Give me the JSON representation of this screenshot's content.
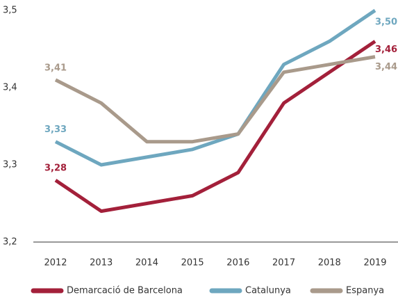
{
  "chart_data": {
    "type": "line",
    "x": [
      2012,
      2013,
      2014,
      2015,
      2016,
      2017,
      2018,
      2019
    ],
    "series": [
      {
        "name": "Demarcació de Barcelona",
        "color": "#a3203a",
        "values": [
          3.28,
          3.24,
          3.25,
          3.26,
          3.29,
          3.38,
          3.42,
          3.46
        ],
        "value_labels": [
          "3,28",
          null,
          null,
          null,
          null,
          null,
          null,
          "3,46"
        ]
      },
      {
        "name": "Catalunya",
        "color": "#6ea7bf",
        "values": [
          3.33,
          3.3,
          3.31,
          3.32,
          3.34,
          3.43,
          3.46,
          3.5
        ],
        "value_labels": [
          "3,33",
          null,
          null,
          null,
          null,
          null,
          null,
          "3,50"
        ]
      },
      {
        "name": "Espanya",
        "color": "#a99a8b",
        "values": [
          3.41,
          3.38,
          3.33,
          3.33,
          3.34,
          3.42,
          3.43,
          3.44
        ],
        "value_labels": [
          "3,41",
          null,
          null,
          null,
          null,
          null,
          null,
          "3,44"
        ]
      }
    ],
    "xlim": [
      2012,
      2019
    ],
    "ylim": [
      3.2,
      3.5
    ],
    "yticks": [
      {
        "value": 3.2,
        "label": "3,2"
      },
      {
        "value": 3.3,
        "label": "3,3"
      },
      {
        "value": 3.4,
        "label": "3,4"
      },
      {
        "value": 3.5,
        "label": "3,5"
      }
    ],
    "grid": false,
    "legend": "bottom"
  }
}
